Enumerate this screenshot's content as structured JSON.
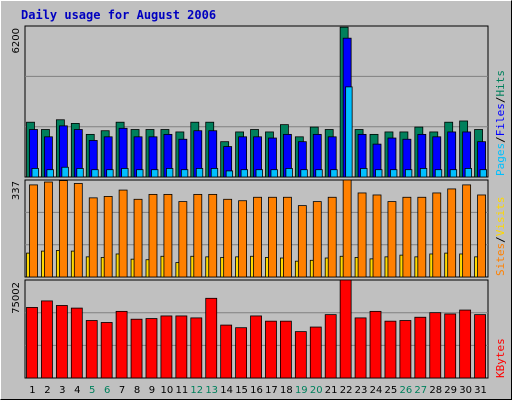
{
  "title": "Daily usage for August 2006",
  "legend": {
    "pages": "Pages",
    "files": "Files",
    "hits": "Hits",
    "sites": "Sites",
    "visits": "Visits",
    "kbytes": "KBytes",
    "sep": "/"
  },
  "colors": {
    "background": "#c0c0c0",
    "grid": "#808080",
    "title": "#0000c0",
    "hits": "#00805c",
    "files": "#0000ff",
    "pages": "#00c0ff",
    "visits": "#ffd800",
    "sites": "#ff8000",
    "kbytes": "#ff0000",
    "weekend": "#00805c",
    "weekday": "#000000"
  },
  "chart_data": [
    {
      "type": "bar",
      "panel": "top",
      "ymax_label": "6200",
      "ylim": [
        0,
        6200
      ],
      "legend_position": "right",
      "categories": [
        "1",
        "2",
        "3",
        "4",
        "5",
        "6",
        "7",
        "8",
        "9",
        "10",
        "11",
        "12",
        "13",
        "14",
        "15",
        "16",
        "17",
        "18",
        "19",
        "20",
        "21",
        "22",
        "23",
        "24",
        "25",
        "26",
        "27",
        "28",
        "29",
        "30",
        "31"
      ],
      "weekend_days": [
        5,
        6,
        12,
        13,
        19,
        20,
        26,
        27
      ],
      "series": [
        {
          "name": "Hits",
          "values": [
            2250,
            1950,
            2350,
            2200,
            1750,
            1900,
            2250,
            1950,
            1950,
            1950,
            1850,
            2250,
            2250,
            1450,
            1850,
            1950,
            1850,
            2150,
            1650,
            2050,
            1950,
            6150,
            1950,
            1750,
            1850,
            1850,
            2050,
            1850,
            2250,
            2300,
            1950
          ]
        },
        {
          "name": "Files",
          "values": [
            1950,
            1650,
            2100,
            1950,
            1500,
            1650,
            2000,
            1650,
            1650,
            1750,
            1550,
            1900,
            1900,
            1250,
            1650,
            1650,
            1600,
            1750,
            1450,
            1750,
            1650,
            5700,
            1750,
            1350,
            1600,
            1550,
            1750,
            1650,
            1850,
            1850,
            1450
          ]
        },
        {
          "name": "Pages",
          "values": [
            350,
            300,
            400,
            350,
            300,
            300,
            350,
            300,
            300,
            350,
            300,
            350,
            350,
            250,
            300,
            300,
            300,
            350,
            300,
            300,
            300,
            3700,
            350,
            300,
            300,
            300,
            350,
            300,
            300,
            350,
            300
          ]
        }
      ]
    },
    {
      "type": "bar",
      "panel": "middle",
      "ymax_label": "337",
      "ylim": [
        0,
        337
      ],
      "legend_position": "right",
      "categories": [
        "1",
        "2",
        "3",
        "4",
        "5",
        "6",
        "7",
        "8",
        "9",
        "10",
        "11",
        "12",
        "13",
        "14",
        "15",
        "16",
        "17",
        "18",
        "19",
        "20",
        "21",
        "22",
        "23",
        "24",
        "25",
        "26",
        "27",
        "28",
        "29",
        "30",
        "31"
      ],
      "series": [
        {
          "name": "Sites",
          "values": [
            320,
            330,
            335,
            325,
            275,
            280,
            302,
            270,
            287,
            287,
            262,
            287,
            287,
            270,
            265,
            277,
            277,
            277,
            248,
            262,
            277,
            337,
            292,
            285,
            262,
            277,
            277,
            292,
            306,
            320,
            285
          ]
        },
        {
          "name": "Visits",
          "values": [
            83,
            90,
            92,
            90,
            70,
            68,
            80,
            62,
            60,
            72,
            50,
            72,
            70,
            68,
            70,
            72,
            68,
            66,
            55,
            58,
            66,
            72,
            68,
            63,
            70,
            76,
            70,
            80,
            83,
            80,
            70
          ]
        }
      ]
    },
    {
      "type": "bar",
      "panel": "bottom",
      "ymax_label": "75002",
      "ylim": [
        0,
        75002
      ],
      "legend_position": "right",
      "categories": [
        "1",
        "2",
        "3",
        "4",
        "5",
        "6",
        "7",
        "8",
        "9",
        "10",
        "11",
        "12",
        "13",
        "14",
        "15",
        "16",
        "17",
        "18",
        "19",
        "20",
        "21",
        "22",
        "23",
        "24",
        "25",
        "26",
        "27",
        "28",
        "29",
        "30",
        "31"
      ],
      "series": [
        {
          "name": "KBytes",
          "values": [
            54000,
            59000,
            55500,
            53500,
            44000,
            42500,
            51000,
            45000,
            45500,
            47500,
            47500,
            46000,
            61000,
            40500,
            38500,
            47500,
            43500,
            43500,
            35500,
            39000,
            48500,
            75002,
            46000,
            51000,
            43500,
            44000,
            46500,
            50000,
            49000,
            52000,
            48500
          ]
        }
      ]
    }
  ]
}
